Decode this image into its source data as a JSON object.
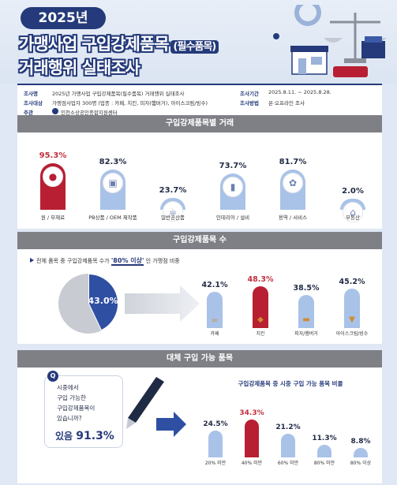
{
  "header": {
    "year": "2025년",
    "title_line1": "가맹사업 구입강제품목",
    "title_pill": "(필수품목)",
    "title_line2": "거래행위 실태조사"
  },
  "info": {
    "k1": "조사명",
    "v1": "2025년 가맹사업 구입강제품목(필수품목) 거래행위 실태조사",
    "k2": "조사대상",
    "v2": "가맹점사업자 300명 (업종 : 카페, 치킨, 피자(햄버거), 아이스크림/빙수)",
    "k3": "주관",
    "v3": "인천소상공인종합지원센터",
    "k4": "조사기간",
    "v4": "2025.8.11. ~ 2025.8.28.",
    "k5": "조사방법",
    "v5": "온·오프라인 조사"
  },
  "sections": {
    "s1": "구입강제품목별 거래",
    "s2": "구입강제품목 수",
    "s3": "대체 구입 가능 품목"
  },
  "s2head": {
    "pre": "전체 품목 중 구입강제품목 수가 ",
    "highlight": "'80% 이상'",
    "post": " 인 가맹점 비중"
  },
  "s3": {
    "q_badge": "Q",
    "q1": "시중에서",
    "q2": "구입 가능한",
    "q3": "구입강제품목이",
    "q4": "있습니까?",
    "answer_pre": "있음 ",
    "answer_num": "91.3%",
    "chart_title": "구입강제품목 중 시중 구입 가능 품목 비율"
  },
  "chart_data": [
    {
      "type": "bar",
      "title": "구입강제품목별 거래",
      "categories": [
        "원 / 부재료",
        "PB상품 / OEM 제작품",
        "일반공산품",
        "인테리어 / 설비",
        "용역 / 서비스",
        "부동산"
      ],
      "values": [
        95.3,
        82.3,
        23.7,
        73.7,
        81.7,
        2.0
      ],
      "labels": [
        "95.3%",
        "82.3%",
        "23.7%",
        "73.7%",
        "81.7%",
        "2.0%"
      ],
      "icons": [
        "grain-icon",
        "package-icon",
        "cup-icon",
        "paint-roller-icon",
        "service-icon",
        "house-icon"
      ],
      "highlight_index": 0,
      "colors": {
        "highlight": "#b81f33",
        "default": "#a9c2e8"
      }
    },
    {
      "type": "pie",
      "title": "구입강제품목 수",
      "values": [
        43.0,
        57.0
      ],
      "labels": [
        "43.0%",
        ""
      ],
      "colors": [
        "#2f4fa3",
        "#c8cbd1"
      ]
    },
    {
      "type": "bar",
      "title": "구입강제품목 수",
      "categories": [
        "카페",
        "치킨",
        "피자/햄버거",
        "아이스크림/빙수"
      ],
      "values": [
        42.1,
        48.3,
        38.5,
        45.2
      ],
      "labels": [
        "42.1%",
        "48.3%",
        "38.5%",
        "45.2%"
      ],
      "icons": [
        "coffee-icon",
        "chicken-icon",
        "burger-icon",
        "icecream-icon"
      ],
      "highlight_index": 1,
      "colors": {
        "highlight": "#b81f33",
        "default": "#a9c2e8"
      }
    },
    {
      "type": "bar",
      "title": "구입강제품목 중 시중 구입 가능 품목 비율",
      "categories": [
        "20% 미만",
        "40% 미만",
        "60% 미만",
        "80% 미만",
        "80% 이상"
      ],
      "values": [
        24.5,
        34.3,
        21.2,
        11.3,
        8.8
      ],
      "labels": [
        "24.5%",
        "34.3%",
        "21.2%",
        "11.3%",
        "8.8%"
      ],
      "highlight_index": 1,
      "colors": {
        "highlight": "#b81f33",
        "default": "#a9c2e8"
      }
    }
  ]
}
